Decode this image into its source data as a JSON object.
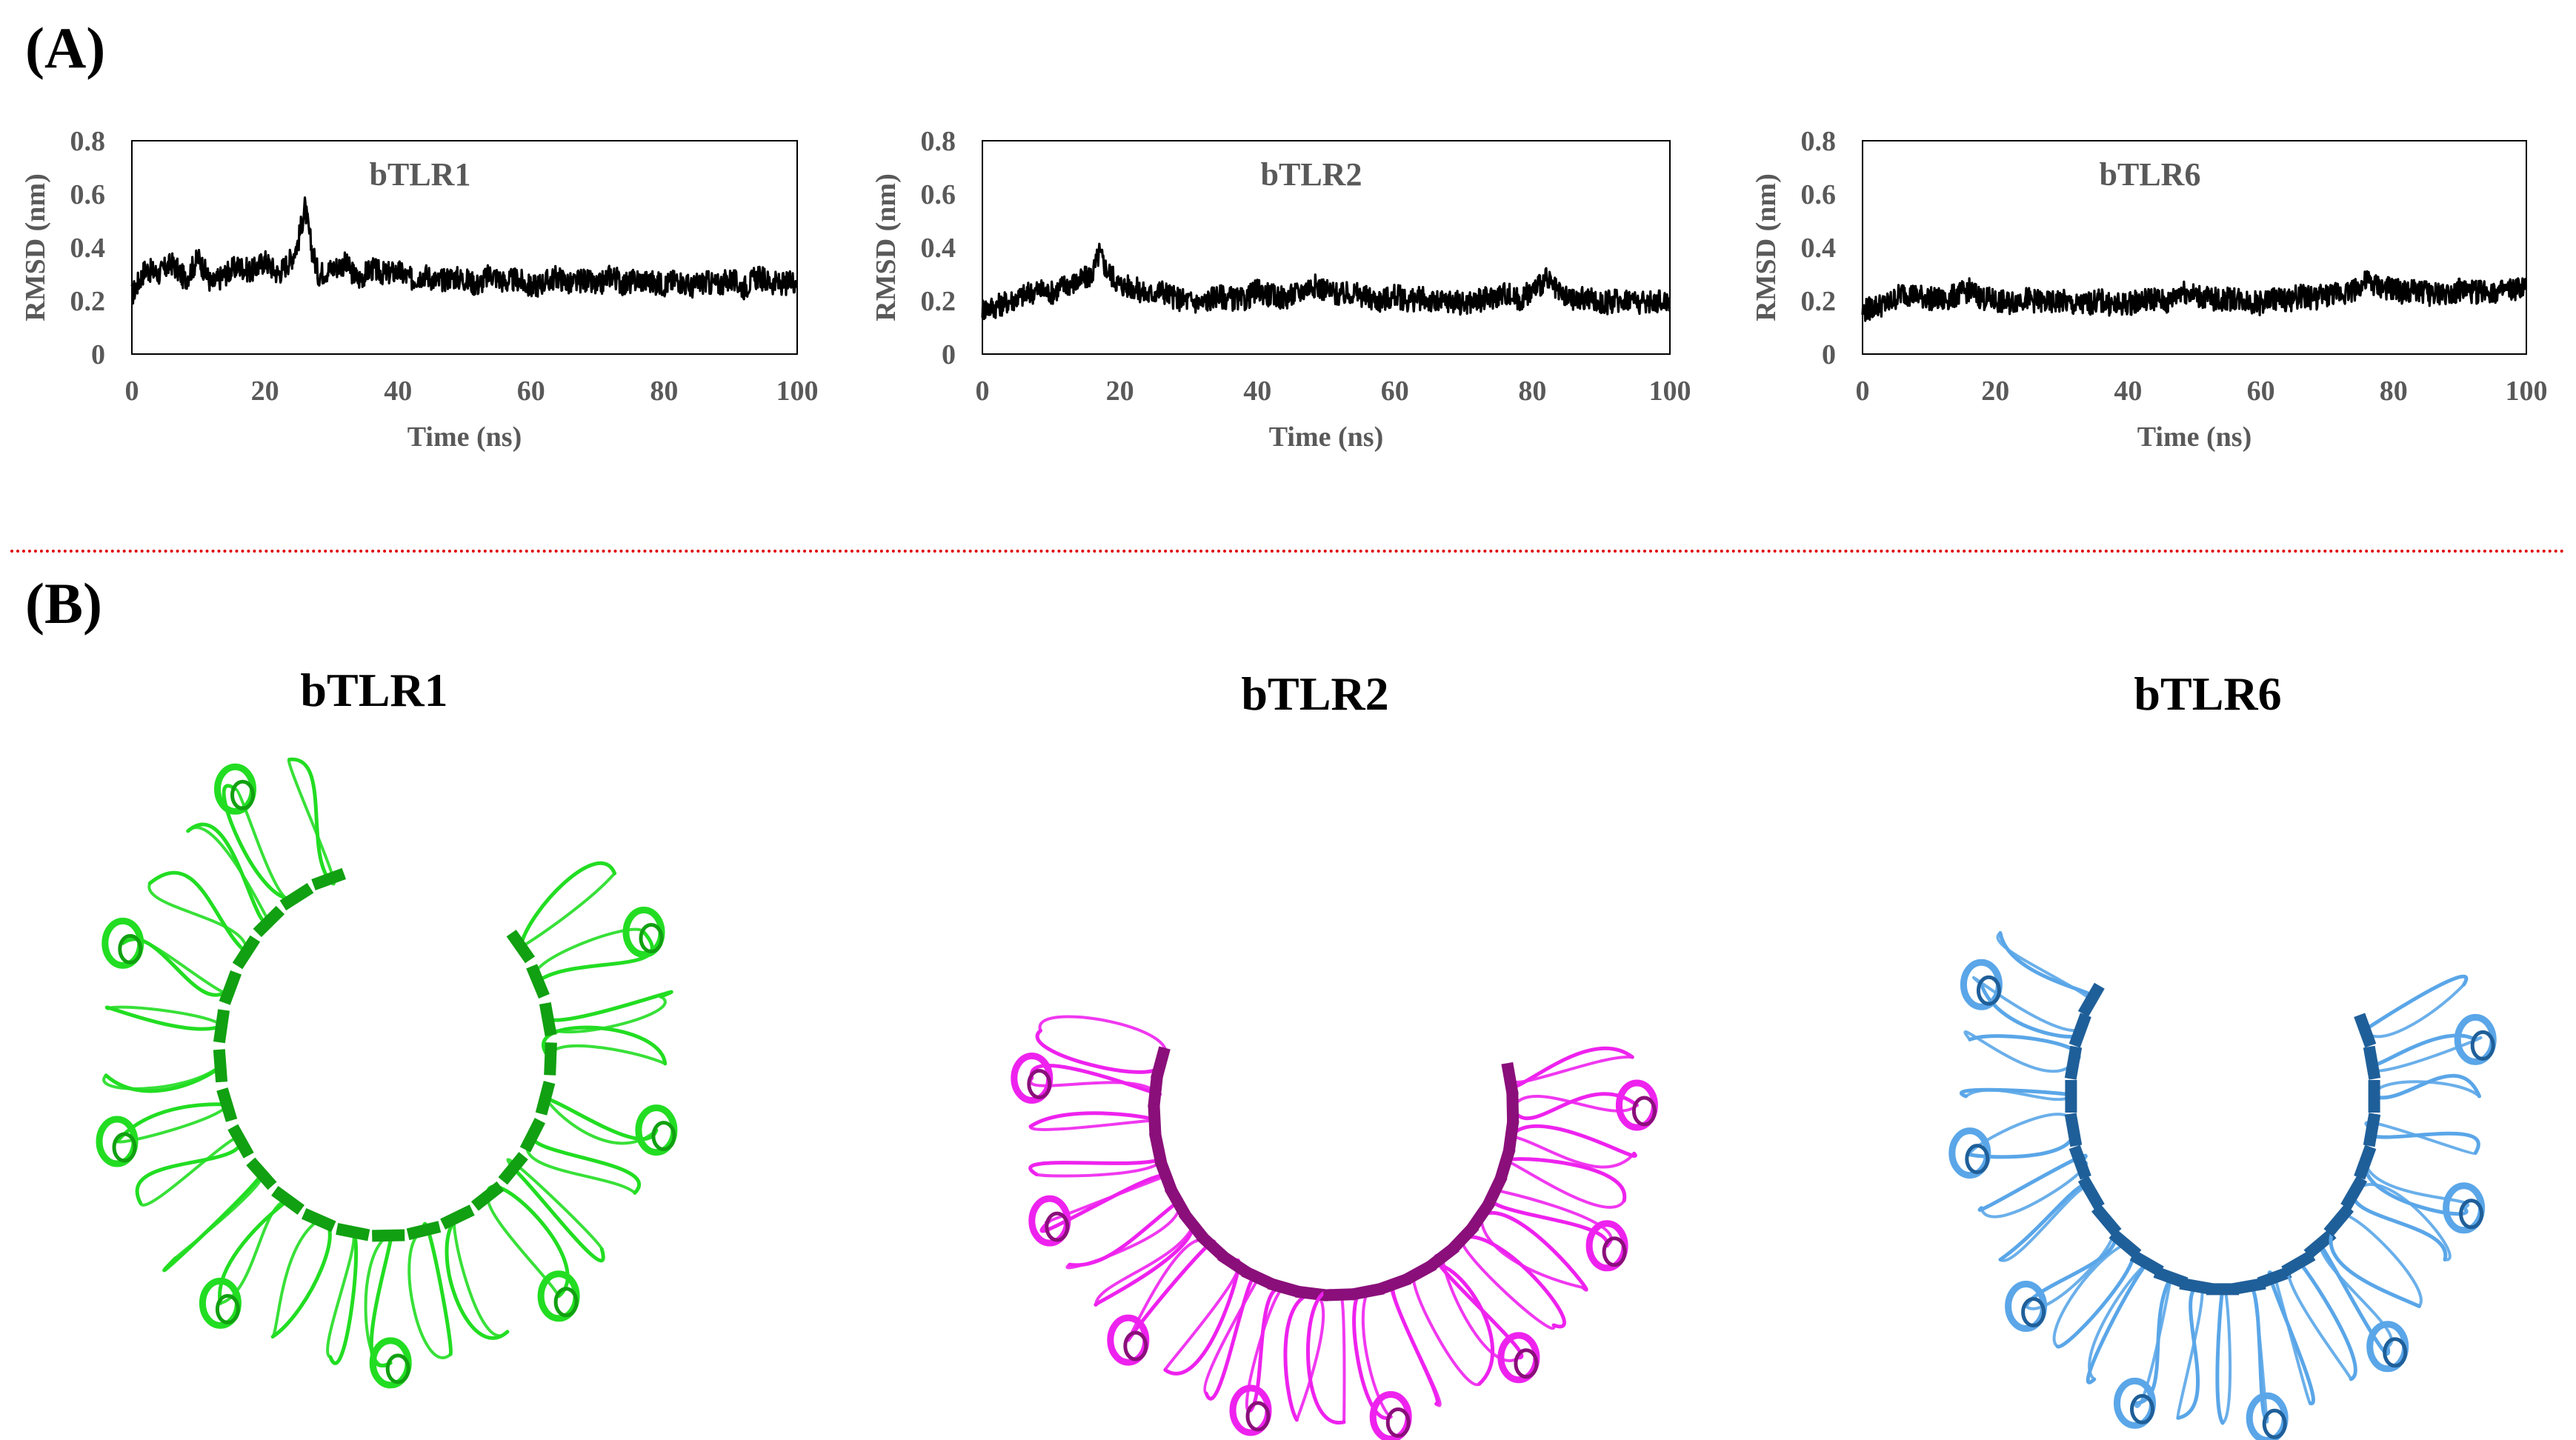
{
  "panel_a_label": "(A)",
  "panel_b_label": "(B)",
  "chart_data": [
    {
      "type": "line",
      "title": "bTLR1",
      "xlabel": "Time (ns)",
      "ylabel": "RMSD (nm)",
      "xlim": [
        0,
        100
      ],
      "ylim": [
        0,
        0.8
      ],
      "xticks": [
        "0",
        "20",
        "40",
        "60",
        "80",
        "100"
      ],
      "yticks": [
        "0",
        "0.2",
        "0.4",
        "0.6",
        "0.8"
      ],
      "color": "#000000",
      "series": [
        {
          "name": "bTLR1",
          "x": [
            0,
            2,
            4,
            6,
            8,
            10,
            12,
            14,
            16,
            18,
            20,
            22,
            24,
            25,
            26,
            27,
            28,
            30,
            32,
            34,
            36,
            38,
            40,
            42,
            44,
            46,
            48,
            50,
            52,
            54,
            56,
            58,
            60,
            62,
            64,
            66,
            68,
            70,
            72,
            74,
            76,
            78,
            80,
            82,
            84,
            86,
            88,
            90,
            92,
            94,
            96,
            98,
            100
          ],
          "values": [
            0.22,
            0.32,
            0.3,
            0.34,
            0.28,
            0.36,
            0.26,
            0.3,
            0.33,
            0.31,
            0.35,
            0.3,
            0.36,
            0.42,
            0.55,
            0.4,
            0.3,
            0.32,
            0.34,
            0.28,
            0.32,
            0.3,
            0.31,
            0.28,
            0.3,
            0.27,
            0.29,
            0.28,
            0.26,
            0.3,
            0.27,
            0.28,
            0.25,
            0.27,
            0.29,
            0.26,
            0.28,
            0.25,
            0.3,
            0.26,
            0.28,
            0.27,
            0.26,
            0.28,
            0.25,
            0.27,
            0.26,
            0.28,
            0.25,
            0.29,
            0.27,
            0.26,
            0.28
          ]
        }
      ]
    },
    {
      "type": "line",
      "title": "bTLR2",
      "xlabel": "Time (ns)",
      "ylabel": "RMSD (nm)",
      "xlim": [
        0,
        100
      ],
      "ylim": [
        0,
        0.8
      ],
      "xticks": [
        "0",
        "20",
        "40",
        "60",
        "80",
        "100"
      ],
      "yticks": [
        "0",
        "0.2",
        "0.4",
        "0.6",
        "0.8"
      ],
      "color": "#000000",
      "series": [
        {
          "name": "bTLR2",
          "x": [
            0,
            2,
            4,
            6,
            8,
            10,
            12,
            14,
            16,
            17,
            18,
            20,
            22,
            24,
            26,
            28,
            30,
            32,
            34,
            36,
            38,
            40,
            42,
            44,
            46,
            48,
            50,
            52,
            54,
            56,
            58,
            60,
            62,
            64,
            66,
            68,
            70,
            72,
            74,
            76,
            78,
            80,
            82,
            84,
            86,
            88,
            90,
            92,
            94,
            96,
            98,
            100
          ],
          "values": [
            0.17,
            0.18,
            0.2,
            0.22,
            0.24,
            0.23,
            0.26,
            0.27,
            0.3,
            0.38,
            0.32,
            0.26,
            0.25,
            0.22,
            0.24,
            0.21,
            0.2,
            0.19,
            0.22,
            0.21,
            0.2,
            0.24,
            0.22,
            0.21,
            0.23,
            0.26,
            0.24,
            0.22,
            0.23,
            0.21,
            0.2,
            0.22,
            0.2,
            0.21,
            0.19,
            0.2,
            0.19,
            0.2,
            0.21,
            0.23,
            0.2,
            0.24,
            0.28,
            0.22,
            0.2,
            0.21,
            0.19,
            0.2,
            0.21,
            0.19,
            0.2,
            0.2
          ]
        }
      ]
    },
    {
      "type": "line",
      "title": "bTLR6",
      "xlabel": "Time (ns)",
      "ylabel": "RMSD (nm)",
      "xlim": [
        0,
        100
      ],
      "ylim": [
        0,
        0.8
      ],
      "xticks": [
        "0",
        "20",
        "40",
        "60",
        "80",
        "100"
      ],
      "yticks": [
        "0",
        "0.2",
        "0.4",
        "0.6",
        "0.8"
      ],
      "color": "#000000",
      "series": [
        {
          "name": "bTLR6",
          "x": [
            0,
            2,
            4,
            6,
            8,
            10,
            12,
            14,
            16,
            18,
            20,
            22,
            24,
            26,
            28,
            30,
            32,
            34,
            36,
            38,
            40,
            42,
            44,
            46,
            48,
            50,
            52,
            54,
            56,
            58,
            60,
            62,
            64,
            66,
            68,
            70,
            72,
            74,
            76,
            78,
            80,
            82,
            84,
            86,
            88,
            90,
            92,
            94,
            96,
            98,
            100
          ],
          "values": [
            0.16,
            0.18,
            0.19,
            0.23,
            0.22,
            0.21,
            0.2,
            0.22,
            0.24,
            0.21,
            0.2,
            0.19,
            0.21,
            0.2,
            0.19,
            0.2,
            0.18,
            0.19,
            0.2,
            0.18,
            0.19,
            0.2,
            0.21,
            0.19,
            0.24,
            0.22,
            0.21,
            0.2,
            0.21,
            0.2,
            0.19,
            0.21,
            0.2,
            0.22,
            0.21,
            0.22,
            0.23,
            0.24,
            0.27,
            0.25,
            0.24,
            0.23,
            0.24,
            0.22,
            0.23,
            0.24,
            0.23,
            0.24,
            0.23,
            0.24,
            0.25
          ]
        }
      ]
    }
  ],
  "structures": [
    {
      "title": "bTLR1",
      "color": "#22dd22",
      "dark": "#11a011"
    },
    {
      "title": "bTLR2",
      "color": "#ee22ee",
      "dark": "#8a0f7a"
    },
    {
      "title": "bTLR6",
      "color": "#5aa6e8",
      "dark": "#1f5f99"
    }
  ]
}
